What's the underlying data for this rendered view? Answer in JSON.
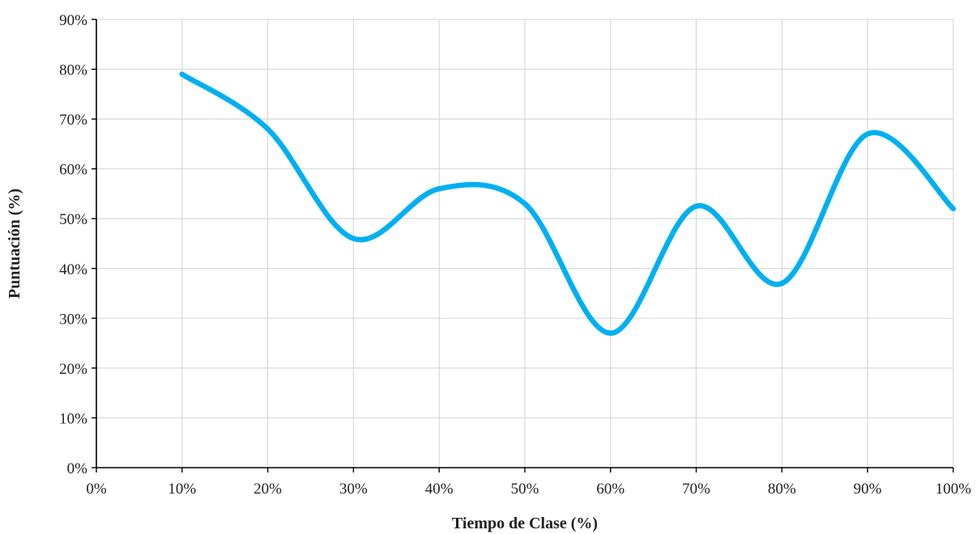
{
  "chart_data": {
    "type": "line",
    "title": "",
    "xlabel": "Tiempo de Clase (%)",
    "ylabel": "Puntuación (%)",
    "x_ticks": [
      "0%",
      "10%",
      "20%",
      "30%",
      "40%",
      "50%",
      "60%",
      "70%",
      "80%",
      "90%",
      "100%"
    ],
    "y_ticks": [
      "0%",
      "10%",
      "20%",
      "30%",
      "40%",
      "50%",
      "60%",
      "70%",
      "80%",
      "90%"
    ],
    "xlim": [
      0,
      100
    ],
    "ylim": [
      0,
      90
    ],
    "grid": true,
    "smooth": true,
    "series": [
      {
        "color": "#00b0f0",
        "x": [
          10,
          20,
          30,
          40,
          50,
          60,
          70,
          80,
          90,
          100
        ],
        "y": [
          79,
          68,
          46,
          56,
          53,
          27,
          52.5,
          37,
          67,
          52
        ]
      }
    ]
  }
}
